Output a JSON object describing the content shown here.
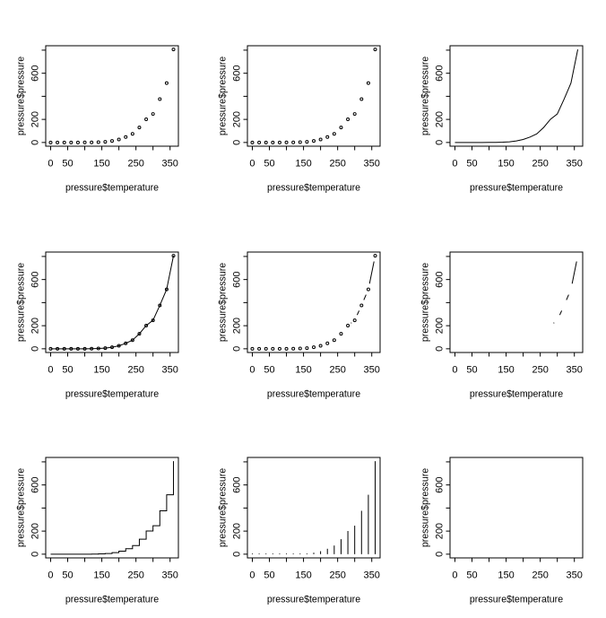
{
  "figure": {
    "background_color": "#ffffff",
    "foreground_color": "#000000",
    "grid_rows": 3,
    "grid_cols": 3
  },
  "chart_data": {
    "type": "scatter",
    "title": "",
    "subtitle": "",
    "xlabel": "pressure$temperature",
    "ylabel": "pressure$pressure",
    "x": [
      0,
      20,
      40,
      60,
      80,
      100,
      120,
      140,
      160,
      180,
      200,
      220,
      240,
      260,
      280,
      300,
      320,
      340,
      360
    ],
    "y": [
      0.0002,
      0.0012,
      0.006,
      0.03,
      0.09,
      0.27,
      0.81,
      2.43,
      5.73,
      13.1,
      26,
      47,
      75,
      130,
      201,
      247,
      376,
      515,
      806
    ],
    "xlim": [
      -14.4,
      374.4
    ],
    "ylim": [
      -32.24,
      838.24
    ],
    "xticks": [
      0,
      50,
      100,
      150,
      200,
      250,
      300,
      350
    ],
    "xtick_labels": [
      "0",
      "50",
      "",
      "150",
      "",
      "250",
      "",
      "350"
    ],
    "yticks": [
      0,
      200,
      400,
      600,
      800
    ],
    "ytick_labels": [
      "0",
      "200",
      "",
      "600",
      ""
    ],
    "grid": "off",
    "legend": "none",
    "marker": "open-circle",
    "panels": [
      {
        "r_type": "p",
        "desc": "points"
      },
      {
        "r_type": "p",
        "desc": "points"
      },
      {
        "r_type": "l",
        "desc": "line"
      },
      {
        "r_type": "o",
        "desc": "points overplotted on line"
      },
      {
        "r_type": "b",
        "desc": "both points and broken segments"
      },
      {
        "r_type": "c",
        "desc": "broken segments only"
      },
      {
        "r_type": "s",
        "desc": "stair steps"
      },
      {
        "r_type": "h",
        "desc": "histogram-like vertical lines"
      },
      {
        "r_type": "n",
        "desc": "no plotting (empty axes)"
      }
    ]
  }
}
